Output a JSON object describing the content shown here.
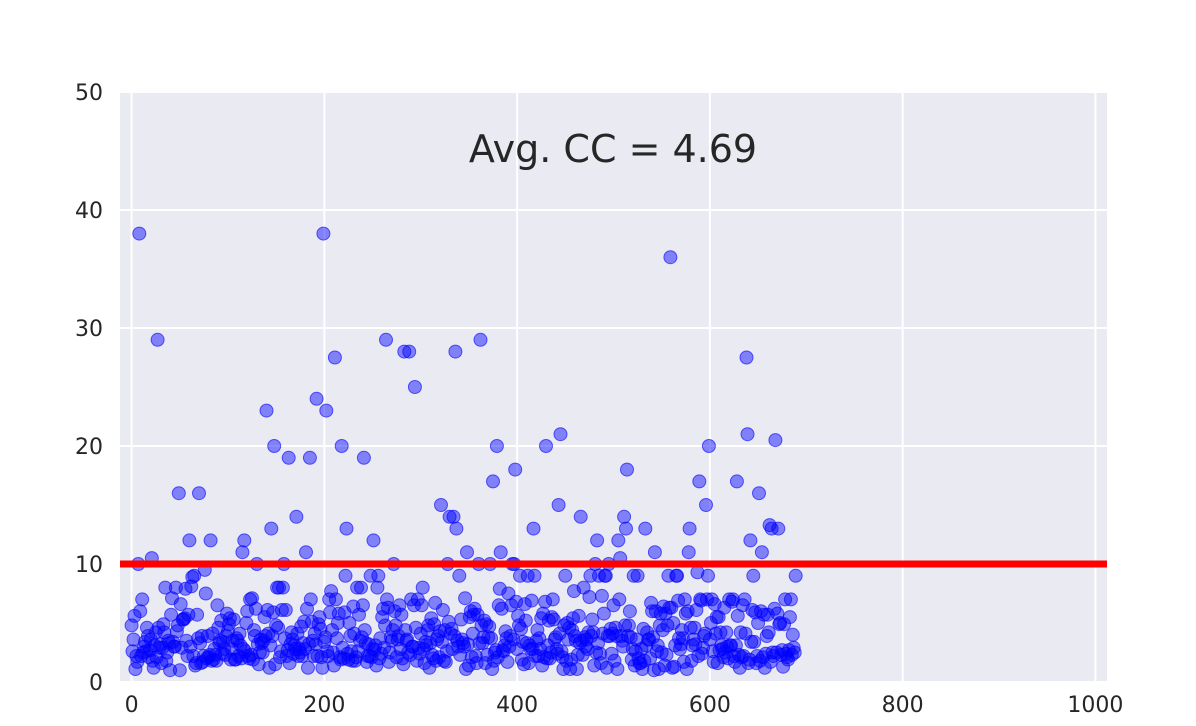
{
  "chart_data": {
    "type": "scatter",
    "title": "",
    "xlabel": "",
    "ylabel": "",
    "xlim": [
      -12,
      1012
    ],
    "ylim": [
      0,
      50
    ],
    "xticks": [
      0,
      200,
      400,
      600,
      800,
      1000
    ],
    "yticks": [
      0,
      10,
      20,
      30,
      40,
      50
    ],
    "xtick_labels": [
      "0",
      "200",
      "400",
      "600",
      "800",
      "1000"
    ],
    "ytick_labels": [
      "0",
      "10",
      "20",
      "30",
      "40",
      "50"
    ],
    "grid": true,
    "annotation": "Avg. CC = 4.69",
    "threshold_line": {
      "y": 10,
      "color": "#ff0000"
    },
    "point_color": "#0000ff",
    "background_color": "#eaeaf2",
    "x_start": 0,
    "x_step": 1,
    "y": [
      4.8,
      2.6,
      3.6,
      5.6,
      1.1,
      2.2,
      1.7,
      10,
      38,
      6,
      2.2,
      7,
      2.5,
      3,
      3.4,
      2.6,
      4.6,
      3.9,
      2.1,
      2.7,
      3.6,
      10.5,
      1.8,
      1.2,
      3.1,
      4.2,
      2.1,
      29,
      4.6,
      2.9,
      3.2,
      1.6,
      2.9,
      4.9,
      4.2,
      8,
      1.8,
      2.5,
      3.5,
      3.3,
      1,
      5.7,
      7.1,
      3.4,
      3,
      3,
      8,
      4.3,
      4.8,
      16,
      1,
      6.6,
      2.9,
      5.3,
      5.3,
      5.4,
      7.9,
      3.5,
      2.2,
      5.7,
      12,
      3,
      8.1,
      8.9,
      2.2,
      9,
      1.4,
      1.6,
      5.7,
      3.7,
      16,
      3.3,
      1.6,
      3.9,
      1.7,
      2.2,
      9.5,
      7.5,
      2,
      3.9,
      2.1,
      2.3,
      12,
      1.8,
      4.1,
      1.9,
      2.8,
      2.3,
      1.8,
      6.5,
      4.6,
      3.3,
      3.5,
      5.2,
      2.4,
      3.4,
      2.8,
      2.3,
      3.9,
      5.8,
      4.3,
      4.9,
      5.4,
      1.9,
      2.8,
      3.5,
      5.3,
      1.9,
      1.9,
      3.7,
      3.5,
      2.2,
      4.1,
      3.1,
      2,
      11,
      2.8,
      12,
      2.6,
      5,
      6,
      2.2,
      2,
      7,
      2.3,
      7.1,
      1.9,
      4.4,
      3.9,
      6.2,
      10,
      3.2,
      1.5,
      2.5,
      3.6,
      3.3,
      2.5,
      3.5,
      5.5,
      3.9,
      23,
      6.1,
      4.1,
      1.2,
      3.1,
      13,
      3.9,
      5.9,
      20,
      1.5,
      4.8,
      8,
      4.6,
      8,
      2.1,
      2.6,
      6.1,
      8,
      10,
      3.7,
      6.1,
      2.2,
      2.7,
      19,
      1.6,
      3.2,
      4.2,
      3.6,
      2.4,
      3.1,
      2.8,
      14,
      4.1,
      2.2,
      2.8,
      2.5,
      4.7,
      2.2,
      3.3,
      5.1,
      2.8,
      11,
      6.2,
      1.2,
      3.2,
      19,
      7,
      5.1,
      3.5,
      2.2,
      4.1,
      3.2,
      24,
      2.2,
      4.9,
      5.5,
      4.5,
      2.1,
      1.2,
      38,
      3.4,
      3.8,
      23,
      2.6,
      2.2,
      7,
      5.9,
      7.7,
      4.4,
      2.5,
      1.4,
      27.5,
      7,
      3.7,
      5,
      5.8,
      2.1,
      1.9,
      20,
      2.9,
      2,
      5.9,
      9,
      13,
      2.4,
      1.9,
      5,
      3.9,
      2.6,
      1.8,
      6.4,
      4.1,
      1.8,
      2.1,
      8,
      2.6,
      5.7,
      3.5,
      8,
      3.8,
      6.5,
      19,
      4.4,
      3.3,
      1.7,
      2.2,
      3.2,
      2.2,
      9,
      2.1,
      2.8,
      12,
      2.7,
      3.1,
      1.4,
      8,
      9,
      2,
      3.7,
      2.4,
      5.5,
      6.2,
      2.9,
      4.8,
      29,
      7,
      6.3,
      1.7,
      2.5,
      3.8,
      3.5,
      4.4,
      10,
      6,
      4.8,
      2.1,
      3.6,
      3.9,
      6.5,
      2.8,
      5.7,
      2,
      1.5,
      28,
      4.4,
      3.5,
      3.6,
      2.5,
      28,
      2.3,
      7,
      3,
      3,
      6.5,
      25,
      4.6,
      1.8,
      7,
      2.9,
      2.4,
      4.1,
      6.5,
      8,
      2.8,
      1.6,
      3.4,
      3.1,
      4.4,
      4.8,
      1.2,
      3.3,
      5.4,
      2.3,
      2,
      4.9,
      6.7,
      1.8,
      3.6,
      3.9,
      2.1,
      4.3,
      15,
      3.4,
      6.1,
      1.8,
      4.4,
      1.7,
      2.6,
      10,
      5.1,
      14,
      4.1,
      4.5,
      2.8,
      14,
      3.9,
      28,
      13,
      3.5,
      3,
      9,
      2.3,
      5.3,
      3.6,
      3.3,
      3,
      7.1,
      1.1,
      11,
      3.2,
      1.4,
      5.5,
      6,
      2.1,
      4.1,
      5.7,
      6.2,
      2.2,
      1.6,
      5.7,
      10,
      3.3,
      29,
      4.8,
      3.3,
      3.8,
      5.2,
      1.6,
      4.9,
      2.3,
      3.8,
      4.7,
      10,
      3.7,
      1.1,
      17,
      1.8,
      2.5,
      2.7,
      20,
      2.1,
      6.5,
      7.9,
      11,
      6.2,
      2.7,
      2.6,
      3.1,
      4.3,
      3.7,
      1.7,
      7.5,
      3,
      3.9,
      6.5,
      10,
      3.6,
      10,
      18,
      6.8,
      2.8,
      5.6,
      4.8,
      9,
      4.5,
      1.9,
      3.4,
      1.5,
      6.6,
      5.2,
      3.3,
      9,
      1.6,
      3.1,
      2.8,
      6.9,
      2.8,
      13,
      9,
      2.2,
      3.5,
      4.4,
      2.2,
      3.7,
      2.8,
      5.4,
      1.4,
      5.8,
      2.1,
      6.8,
      20,
      2,
      3.1,
      5.2,
      2,
      2.5,
      5.5,
      7,
      5.3,
      3.6,
      3.8,
      2.8,
      2.4,
      15,
      4.1,
      21,
      2.6,
      2.1,
      1.1,
      4.8,
      9,
      1.8,
      5,
      3.6,
      4.6,
      1.1,
      1.9,
      4.4,
      5.4,
      7.7,
      3.9,
      3.5,
      1.1,
      2.3,
      5.6,
      3.3,
      14,
      3.5,
      2.3,
      8,
      3.8,
      3,
      3.6,
      2.8,
      4.2,
      7.2,
      9,
      3.9,
      5.3,
      4.2,
      1.4,
      10,
      2.5,
      12,
      3.3,
      9,
      2.4,
      1.6,
      7.3,
      4.1,
      5.8,
      9,
      9,
      1.2,
      3.9,
      10,
      3.9,
      4.5,
      2.4,
      4.1,
      6.5,
      1.8,
      4.6,
      3.9,
      1.1,
      12,
      7,
      10.5,
      3.9,
      3.5,
      3,
      14,
      4.8,
      13,
      18,
      3.9,
      4.8,
      6,
      3.8,
      1.9,
      2.8,
      9,
      1.4,
      2.6,
      3.6,
      9,
      2,
      1.6,
      1.6,
      2.8,
      1.1,
      4.5,
      1.8,
      13,
      3.1,
      4.2,
      3.6,
      3.6,
      2,
      6.7,
      6,
      3.8,
      1,
      11,
      6,
      2.6,
      3.1,
      1.1,
      4.8,
      5.8,
      2.5,
      4.4,
      6.4,
      1.4,
      5.8,
      2.3,
      4.8,
      9,
      6.3,
      36,
      6.3,
      1.2,
      5,
      1.3,
      3.1,
      9,
      9,
      6.9,
      3.7,
      2.8,
      3.2,
      4.4,
      3.7,
      1.7,
      7,
      5.8,
      1.1,
      6,
      11,
      13,
      4.6,
      1.8,
      3.1,
      3.6,
      4.6,
      3.2,
      6.1,
      9.3,
      2.2,
      17,
      7,
      6.9,
      2.4,
      2.9,
      3.9,
      4.1,
      15,
      7,
      9,
      20,
      3.6,
      5,
      7,
      2.6,
      1.7,
      6.6,
      4.1,
      5.5,
      1.6,
      5.5,
      2.7,
      4.2,
      3.1,
      2.8,
      2.1,
      6.3,
      2.5,
      4.2,
      3,
      2,
      7,
      3.1,
      3.1,
      6.8,
      7,
      2.2,
      1.7,
      3.1,
      17,
      5.6,
      2.3,
      1.2,
      4.2,
      2.1,
      6.5,
      2.2,
      7,
      4.1,
      27.5,
      21,
      1.6,
      1.9,
      12,
      3.4,
      6.1,
      9,
      3.4,
      5.9,
      1.6,
      2.2,
      5,
      16,
      1.8,
      6,
      11,
      2.1,
      5.7,
      1.2,
      2.4,
      3.9,
      5.7,
      4.2,
      13.3,
      1.7,
      13,
      2.5,
      2.2,
      6.2,
      20.5,
      2.5,
      5.8,
      13,
      4.9,
      5,
      2.3,
      2.7,
      1.3,
      4.9,
      7,
      2.4,
      2.1,
      1.9,
      2.7,
      5.5,
      7,
      2.3,
      4,
      2.9,
      2.5,
      9
    ]
  }
}
